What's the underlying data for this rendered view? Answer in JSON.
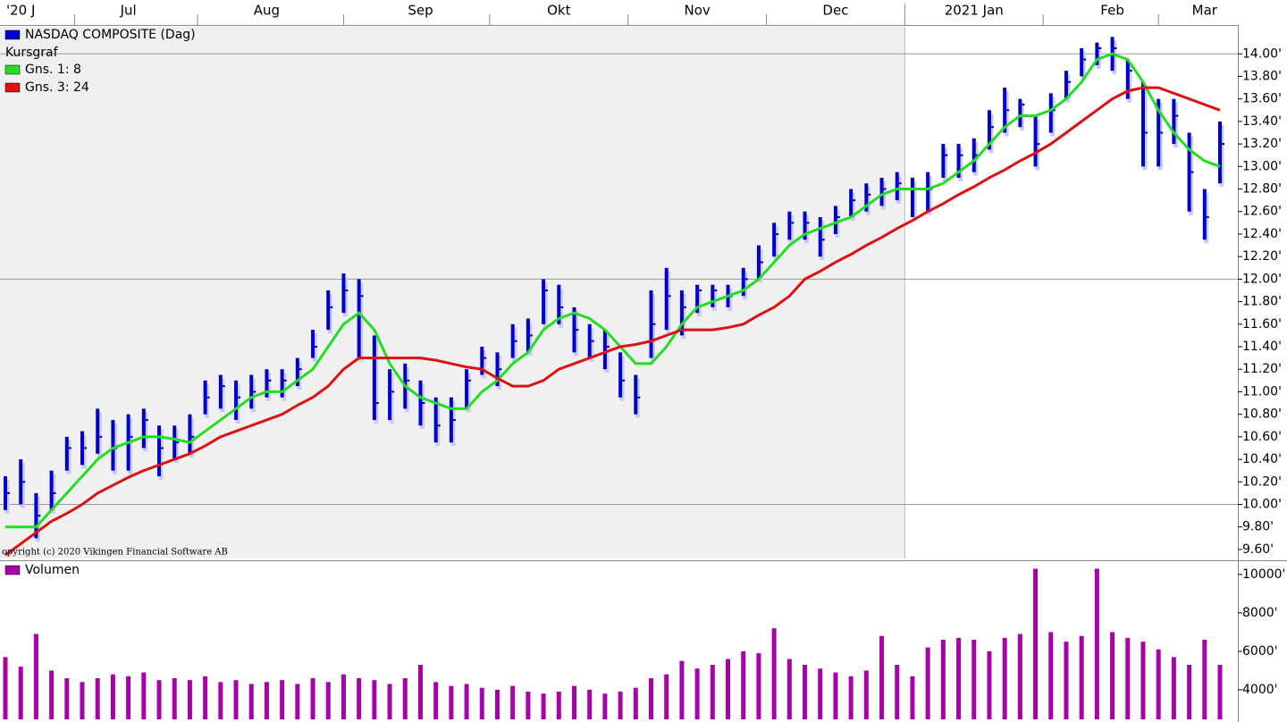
{
  "chart_data": [
    {
      "type": "ohlc",
      "legend_heading": "Kursgraf",
      "copyright": "opyright (c) 2020 Vikingen Financial Software AB",
      "categories": [
        null,
        "'20 J",
        null,
        null,
        null,
        null,
        null,
        null,
        "Jul",
        null,
        null,
        null,
        null,
        null,
        null,
        null,
        null,
        "Aug",
        null,
        null,
        null,
        null,
        null,
        null,
        null,
        null,
        null,
        "Sep",
        null,
        null,
        null,
        null,
        null,
        null,
        null,
        null,
        "Okt",
        null,
        null,
        null,
        null,
        null,
        null,
        null,
        null,
        "Nov",
        null,
        null,
        null,
        null,
        null,
        null,
        null,
        null,
        "Dec",
        null,
        null,
        null,
        null,
        null,
        null,
        null,
        null,
        "2021 Jan",
        null,
        null,
        null,
        null,
        null,
        null,
        null,
        null,
        "Feb",
        null,
        null,
        null,
        null,
        null,
        "Mar",
        null
      ],
      "series": [
        {
          "name": "NASDAQ COMPOSITE (Dag)",
          "color": "#0000cc",
          "high": [
            10.25,
            10.4,
            10.1,
            10.3,
            10.6,
            10.65,
            10.85,
            10.75,
            10.8,
            10.85,
            10.7,
            10.7,
            10.8,
            11.1,
            11.15,
            11.1,
            11.15,
            11.2,
            11.2,
            11.3,
            11.55,
            11.9,
            12.05,
            12.0,
            11.5,
            11.2,
            11.25,
            11.1,
            10.95,
            10.95,
            11.2,
            11.4,
            11.35,
            11.6,
            11.65,
            12.0,
            11.95,
            11.75,
            11.6,
            11.55,
            11.35,
            11.15,
            11.9,
            12.1,
            11.9,
            11.95,
            11.95,
            11.95,
            12.1,
            12.3,
            12.5,
            12.6,
            12.6,
            12.55,
            12.65,
            12.8,
            12.85,
            12.9,
            12.95,
            12.9,
            12.95,
            13.2,
            13.2,
            13.25,
            13.5,
            13.7,
            13.6,
            13.45,
            13.65,
            13.85,
            14.05,
            14.1,
            14.15,
            13.95,
            13.75,
            13.6,
            13.6,
            13.3,
            12.8,
            13.4
          ],
          "low": [
            9.95,
            10.0,
            9.7,
            9.95,
            10.3,
            10.35,
            10.45,
            10.3,
            10.3,
            10.5,
            10.25,
            10.4,
            10.45,
            10.8,
            10.85,
            10.75,
            10.85,
            10.95,
            10.95,
            11.05,
            11.3,
            11.55,
            11.7,
            11.3,
            10.75,
            10.75,
            10.85,
            10.7,
            10.55,
            10.55,
            10.85,
            11.15,
            11.05,
            11.3,
            11.35,
            11.6,
            11.6,
            11.35,
            11.3,
            11.2,
            10.95,
            10.8,
            11.3,
            11.55,
            11.5,
            11.7,
            11.75,
            11.75,
            11.85,
            12.0,
            12.2,
            12.35,
            12.35,
            12.2,
            12.4,
            12.55,
            12.6,
            12.65,
            12.7,
            12.55,
            12.6,
            12.9,
            12.9,
            12.95,
            13.15,
            13.3,
            13.35,
            13.0,
            13.3,
            13.6,
            13.8,
            13.9,
            13.85,
            13.6,
            13.0,
            13.0,
            13.2,
            12.6,
            12.35,
            12.85
          ],
          "close": [
            10.1,
            10.2,
            9.9,
            10.1,
            10.5,
            10.5,
            10.6,
            10.5,
            10.6,
            10.75,
            10.5,
            10.55,
            10.6,
            10.95,
            11.05,
            10.95,
            11.0,
            11.1,
            11.1,
            11.2,
            11.4,
            11.75,
            11.9,
            11.85,
            10.9,
            11.0,
            11.1,
            10.9,
            10.7,
            10.75,
            11.1,
            11.3,
            11.2,
            11.45,
            11.5,
            11.9,
            11.75,
            11.55,
            11.45,
            11.4,
            11.1,
            10.95,
            11.6,
            11.85,
            11.75,
            11.9,
            11.9,
            11.85,
            12.0,
            12.15,
            12.4,
            12.5,
            12.5,
            12.35,
            12.55,
            12.7,
            12.75,
            12.8,
            12.85,
            12.8,
            12.8,
            13.1,
            13.1,
            13.1,
            13.35,
            13.5,
            13.55,
            13.2,
            13.5,
            13.75,
            13.95,
            14.05,
            14.05,
            13.85,
            13.3,
            13.3,
            13.45,
            12.95,
            12.55,
            13.2
          ]
        },
        {
          "name": "Gns. 1: 8",
          "color": "#22dd22",
          "values": [
            9.8,
            9.8,
            9.8,
            9.95,
            10.1,
            10.25,
            10.4,
            10.5,
            10.55,
            10.6,
            10.6,
            10.58,
            10.55,
            10.65,
            10.75,
            10.85,
            10.95,
            11.0,
            11.0,
            11.1,
            11.2,
            11.4,
            11.6,
            11.7,
            11.55,
            11.25,
            11.05,
            10.95,
            10.9,
            10.85,
            10.85,
            11.0,
            11.1,
            11.25,
            11.35,
            11.55,
            11.65,
            11.7,
            11.65,
            11.55,
            11.4,
            11.25,
            11.25,
            11.4,
            11.6,
            11.75,
            11.8,
            11.85,
            11.9,
            12.0,
            12.15,
            12.3,
            12.4,
            12.45,
            12.5,
            12.55,
            12.65,
            12.75,
            12.8,
            12.8,
            12.8,
            12.85,
            12.95,
            13.05,
            13.2,
            13.35,
            13.45,
            13.45,
            13.5,
            13.6,
            13.75,
            13.95,
            14.0,
            13.95,
            13.75,
            13.5,
            13.3,
            13.15,
            13.05,
            13.0
          ]
        },
        {
          "name": "Gns. 3: 24",
          "color": "#dd1111",
          "values": [
            9.55,
            9.65,
            9.75,
            9.85,
            9.92,
            10.0,
            10.1,
            10.17,
            10.24,
            10.3,
            10.35,
            10.4,
            10.45,
            10.52,
            10.6,
            10.65,
            10.7,
            10.75,
            10.8,
            10.88,
            10.95,
            11.05,
            11.2,
            11.3,
            11.3,
            11.3,
            11.3,
            11.3,
            11.28,
            11.25,
            11.22,
            11.2,
            11.12,
            11.05,
            11.05,
            11.1,
            11.2,
            11.25,
            11.3,
            11.35,
            11.4,
            11.42,
            11.45,
            11.5,
            11.55,
            11.55,
            11.55,
            11.57,
            11.6,
            11.68,
            11.75,
            11.85,
            12.0,
            12.07,
            12.15,
            12.22,
            12.3,
            12.37,
            12.45,
            12.52,
            12.6,
            12.67,
            12.75,
            12.82,
            12.9,
            12.97,
            13.05,
            13.12,
            13.2,
            13.3,
            13.4,
            13.5,
            13.6,
            13.67,
            13.7,
            13.7,
            13.65,
            13.6,
            13.55,
            13.5
          ]
        }
      ],
      "ylim": [
        9.52,
        14.24
      ],
      "yticks": [
        {
          "value": 9.6,
          "label": "9.60'"
        },
        {
          "value": 9.8,
          "label": "9.80'"
        },
        {
          "value": 10.0,
          "label": "10.00'"
        },
        {
          "value": 10.2,
          "label": "10.20'"
        },
        {
          "value": 10.4,
          "label": "10.40'"
        },
        {
          "value": 10.6,
          "label": "10.60'"
        },
        {
          "value": 10.8,
          "label": "10.80'"
        },
        {
          "value": 11.0,
          "label": "11.00'"
        },
        {
          "value": 11.2,
          "label": "11.20'"
        },
        {
          "value": 11.4,
          "label": "11.40'"
        },
        {
          "value": 11.6,
          "label": "11.60'"
        },
        {
          "value": 11.8,
          "label": "11.80'"
        },
        {
          "value": 12.0,
          "label": "12.00'"
        },
        {
          "value": 12.2,
          "label": "12.20'"
        },
        {
          "value": 12.4,
          "label": "12.40'"
        },
        {
          "value": 12.6,
          "label": "12.60'"
        },
        {
          "value": 12.8,
          "label": "12.80'"
        },
        {
          "value": 13.0,
          "label": "13.00'"
        },
        {
          "value": 13.2,
          "label": "13.20'"
        },
        {
          "value": 13.4,
          "label": "13.40'"
        },
        {
          "value": 13.6,
          "label": "13.60'"
        },
        {
          "value": 13.8,
          "label": "13.80'"
        },
        {
          "value": 14.0,
          "label": "14.00'"
        }
      ]
    },
    {
      "type": "bar",
      "series": [
        {
          "name": "Volumen",
          "color": "#aa00aa",
          "values": [
            5700,
            5200,
            6900,
            5000,
            4600,
            4400,
            4600,
            4800,
            4700,
            4900,
            4500,
            4600,
            4500,
            4700,
            4400,
            4500,
            4300,
            4400,
            4500,
            4300,
            4600,
            4400,
            4800,
            4600,
            4500,
            4300,
            4600,
            5300,
            4400,
            4200,
            4300,
            4100,
            4000,
            4200,
            3900,
            3800,
            3900,
            4200,
            4000,
            3800,
            3900,
            4100,
            4600,
            4800,
            5500,
            5100,
            5300,
            5600,
            6000,
            5900,
            7200,
            5600,
            5300,
            5100,
            4900,
            4700,
            5000,
            6800,
            5300,
            4700,
            6200,
            6600,
            6700,
            6600,
            6000,
            6700,
            6900,
            10300,
            7000,
            6500,
            6800,
            10300,
            7000,
            6700,
            6500,
            6100,
            5700,
            5300,
            6600,
            5300
          ]
        }
      ],
      "ylim": [
        2460,
        10600
      ],
      "yticks": [
        {
          "value": 4000,
          "label": "4000'"
        },
        {
          "value": 6000,
          "label": "6000'"
        },
        {
          "value": 8000,
          "label": "8000'"
        },
        {
          "value": 10000,
          "label": "10000'"
        }
      ]
    }
  ]
}
